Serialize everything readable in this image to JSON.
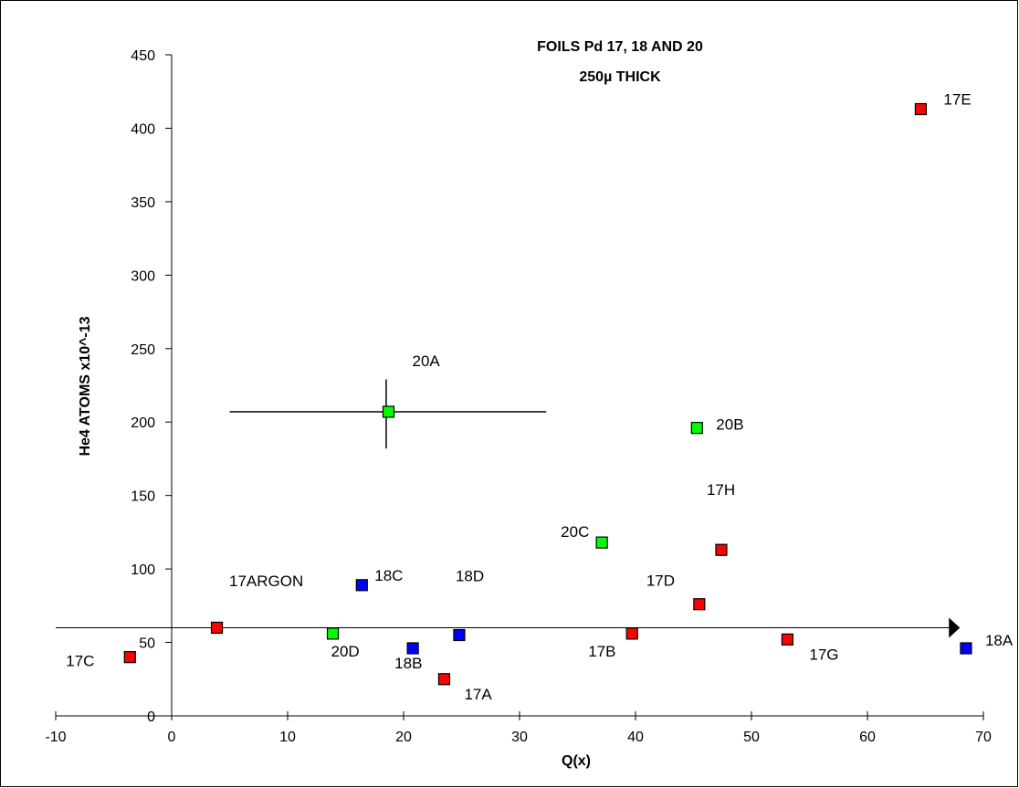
{
  "chart_data": {
    "type": "scatter",
    "title": [
      "FOILS Pd 17, 18 AND 20",
      "250µ THICK"
    ],
    "xlabel": "Q(x)",
    "ylabel": "He4 ATOMS   x10^-13",
    "xlim": [
      -10,
      70
    ],
    "ylim": [
      0,
      450
    ],
    "x_ticks": [
      -10,
      0,
      10,
      20,
      30,
      40,
      50,
      60,
      70
    ],
    "y_ticks": [
      0,
      50,
      100,
      150,
      200,
      250,
      300,
      350,
      400,
      450
    ],
    "grid": false,
    "legend": "none",
    "reference_line": {
      "y": 60,
      "x_from": -10,
      "x_to": 67.5,
      "arrow": true
    },
    "error_bars": [
      {
        "point": "20A",
        "x": 18.5,
        "y": 207,
        "x_minus": 5.0,
        "x_plus": 32.3,
        "y_minus": 182,
        "y_plus": 229
      }
    ],
    "series": [
      {
        "color": "#ff0000",
        "points": [
          {
            "label": "17A",
            "x": 23.5,
            "y": 25
          },
          {
            "label": "17B",
            "x": 39.7,
            "y": 56
          },
          {
            "label": "17C",
            "x": -3.6,
            "y": 40
          },
          {
            "label": "17D",
            "x": 45.5,
            "y": 76
          },
          {
            "label": "17E",
            "x": 64.6,
            "y": 413
          },
          {
            "label": "17G",
            "x": 53.1,
            "y": 52
          },
          {
            "label": "17H",
            "x": 47.4,
            "y": 113
          },
          {
            "label": "17ARGON",
            "x": 3.9,
            "y": 60
          }
        ]
      },
      {
        "color": "#0000ff",
        "points": [
          {
            "label": "18A",
            "x": 68.5,
            "y": 46
          },
          {
            "label": "18B",
            "x": 20.8,
            "y": 46
          },
          {
            "label": "18C",
            "x": 16.4,
            "y": 89
          },
          {
            "label": "18D",
            "x": 24.8,
            "y": 55
          }
        ]
      },
      {
        "color": "#00ff00",
        "points": [
          {
            "label": "20A",
            "x": 18.7,
            "y": 207
          },
          {
            "label": "20B",
            "x": 45.3,
            "y": 196
          },
          {
            "label": "20C",
            "x": 37.1,
            "y": 118
          },
          {
            "label": "20D",
            "x": 13.9,
            "y": 56
          }
        ]
      }
    ]
  }
}
